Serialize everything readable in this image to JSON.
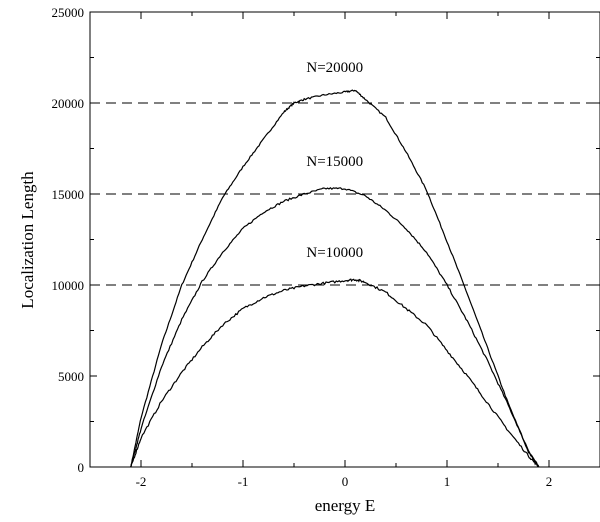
{
  "chart_data": {
    "type": "line",
    "title": "",
    "xlabel": "energy E",
    "ylabel": "Localization Length",
    "xlim": [
      -2.5,
      2.5
    ],
    "ylim": [
      0,
      25000
    ],
    "x_ticks": [
      -2,
      -1,
      0,
      1,
      2
    ],
    "x_tick_labels": [
      "-2",
      "-1",
      "0",
      "1",
      "2"
    ],
    "y_ticks": [
      0,
      5000,
      10000,
      15000,
      20000,
      25000
    ],
    "y_tick_labels": [
      "0",
      "5000",
      "10000",
      "15000",
      "20000",
      "25000"
    ],
    "grid": false,
    "reference_lines": [
      {
        "y": 20000,
        "style": "dashed"
      },
      {
        "y": 15000,
        "style": "dashed"
      },
      {
        "y": 10000,
        "style": "dashed"
      }
    ],
    "annotations": [
      {
        "text": "N=20000",
        "x": -0.1,
        "y": 21700
      },
      {
        "text": "N=15000",
        "x": -0.1,
        "y": 16550
      },
      {
        "text": "N=10000",
        "x": -0.1,
        "y": 11550
      }
    ],
    "series": [
      {
        "color": "#000000",
        "x": [
          -2.1,
          -2.0,
          -1.8,
          -1.6,
          -1.4,
          -1.2,
          -1.0,
          -0.8,
          -0.6,
          -0.5,
          -0.4,
          -0.2,
          0.0,
          0.1,
          0.2,
          0.4,
          0.6,
          0.8,
          1.0,
          1.2,
          1.4,
          1.6,
          1.8,
          1.9
        ],
        "values": [
          0,
          2700,
          6700,
          10000,
          12500,
          14800,
          16500,
          18000,
          19500,
          20000,
          20200,
          20450,
          20600,
          20700,
          20200,
          19200,
          17300,
          15200,
          12400,
          9500,
          6500,
          3500,
          800,
          0
        ]
      },
      {
        "color": "#000000",
        "x": [
          -2.1,
          -2.0,
          -1.8,
          -1.6,
          -1.4,
          -1.2,
          -1.0,
          -0.8,
          -0.6,
          -0.4,
          -0.2,
          0.0,
          0.2,
          0.4,
          0.6,
          0.8,
          1.0,
          1.2,
          1.4,
          1.6,
          1.8,
          1.9
        ],
        "values": [
          0,
          2100,
          5500,
          8100,
          10200,
          11800,
          13100,
          14000,
          14600,
          15000,
          15300,
          15300,
          14900,
          14100,
          13100,
          11800,
          10000,
          8000,
          5800,
          3400,
          900,
          0
        ]
      },
      {
        "color": "#000000",
        "x": [
          -2.1,
          -2.0,
          -1.8,
          -1.6,
          -1.4,
          -1.2,
          -1.0,
          -0.8,
          -0.6,
          -0.4,
          -0.2,
          0.0,
          0.1,
          0.2,
          0.4,
          0.6,
          0.8,
          1.0,
          1.2,
          1.4,
          1.6,
          1.8,
          1.9
        ],
        "values": [
          0,
          1600,
          3600,
          5200,
          6600,
          7800,
          8700,
          9300,
          9700,
          9950,
          10100,
          10250,
          10300,
          10150,
          9600,
          8700,
          7800,
          6400,
          5000,
          3500,
          2000,
          600,
          0
        ]
      }
    ]
  }
}
